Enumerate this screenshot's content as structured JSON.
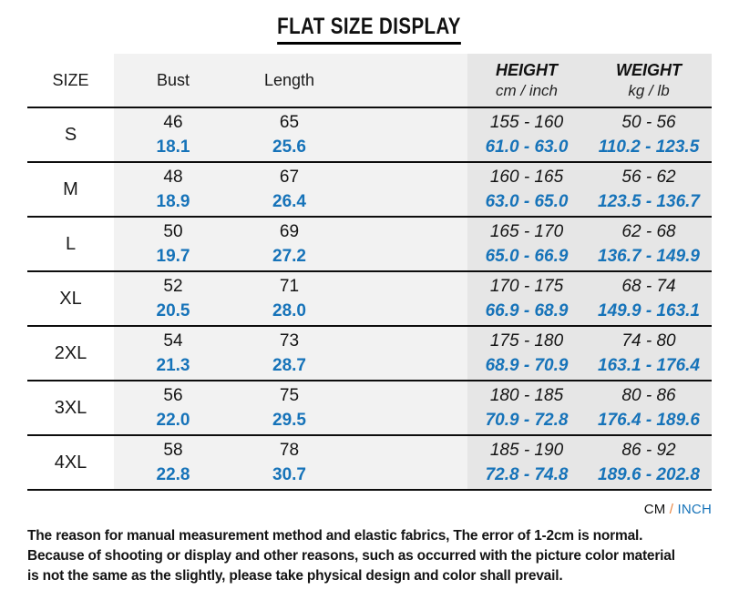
{
  "title": "FLAT SIZE DISPLAY",
  "table": {
    "headers": {
      "size": "SIZE",
      "bust": "Bust",
      "length": "Length",
      "height_label": "HEIGHT",
      "height_sub": "cm / inch",
      "weight_label": "WEIGHT",
      "weight_sub": "kg / lb"
    },
    "rows": [
      {
        "size": "S",
        "bust_cm": "46",
        "bust_in": "18.1",
        "length_cm": "65",
        "length_in": "25.6",
        "height_cm": "155 - 160",
        "height_in": "61.0 - 63.0",
        "weight_kg": "50 - 56",
        "weight_lb": "110.2 - 123.5"
      },
      {
        "size": "M",
        "bust_cm": "48",
        "bust_in": "18.9",
        "length_cm": "67",
        "length_in": "26.4",
        "height_cm": "160 - 165",
        "height_in": "63.0 - 65.0",
        "weight_kg": "56 - 62",
        "weight_lb": "123.5 - 136.7"
      },
      {
        "size": "L",
        "bust_cm": "50",
        "bust_in": "19.7",
        "length_cm": "69",
        "length_in": "27.2",
        "height_cm": "165 - 170",
        "height_in": "65.0 - 66.9",
        "weight_kg": "62 - 68",
        "weight_lb": "136.7 - 149.9"
      },
      {
        "size": "XL",
        "bust_cm": "52",
        "bust_in": "20.5",
        "length_cm": "71",
        "length_in": "28.0",
        "height_cm": "170 - 175",
        "height_in": "66.9 - 68.9",
        "weight_kg": "68 - 74",
        "weight_lb": "149.9 - 163.1"
      },
      {
        "size": "2XL",
        "bust_cm": "54",
        "bust_in": "21.3",
        "length_cm": "73",
        "length_in": "28.7",
        "height_cm": "175 - 180",
        "height_in": "68.9 - 70.9",
        "weight_kg": "74 - 80",
        "weight_lb": "163.1 - 176.4"
      },
      {
        "size": "3XL",
        "bust_cm": "56",
        "bust_in": "22.0",
        "length_cm": "75",
        "length_in": "29.5",
        "height_cm": "180 - 185",
        "height_in": "70.9 - 72.8",
        "weight_kg": "80 - 86",
        "weight_lb": "176.4 - 189.6"
      },
      {
        "size": "4XL",
        "bust_cm": "58",
        "bust_in": "22.8",
        "length_cm": "78",
        "length_in": "30.7",
        "height_cm": "185 - 190",
        "height_in": "72.8 - 74.8",
        "weight_kg": "86 - 92",
        "weight_lb": "189.6 - 202.8"
      }
    ]
  },
  "unit_legend": {
    "cm": "CM",
    "separator": " / ",
    "inch": "INCH"
  },
  "footnote": {
    "line1": "The reason for manual measurement method and elastic fabrics, The error of 1-2cm is normal.",
    "line2": "Because of shooting or display and other reasons, such as occurred with the picture color material",
    "line3": "is not the same as the slightly, please take physical design and color shall prevail."
  },
  "colors": {
    "inch_blue": "#1673b9",
    "legend_orange": "#e8833d",
    "band_light": "#f2f2f2",
    "band_dark": "#e6e6e6",
    "separator_line": "#0d0d0d"
  }
}
